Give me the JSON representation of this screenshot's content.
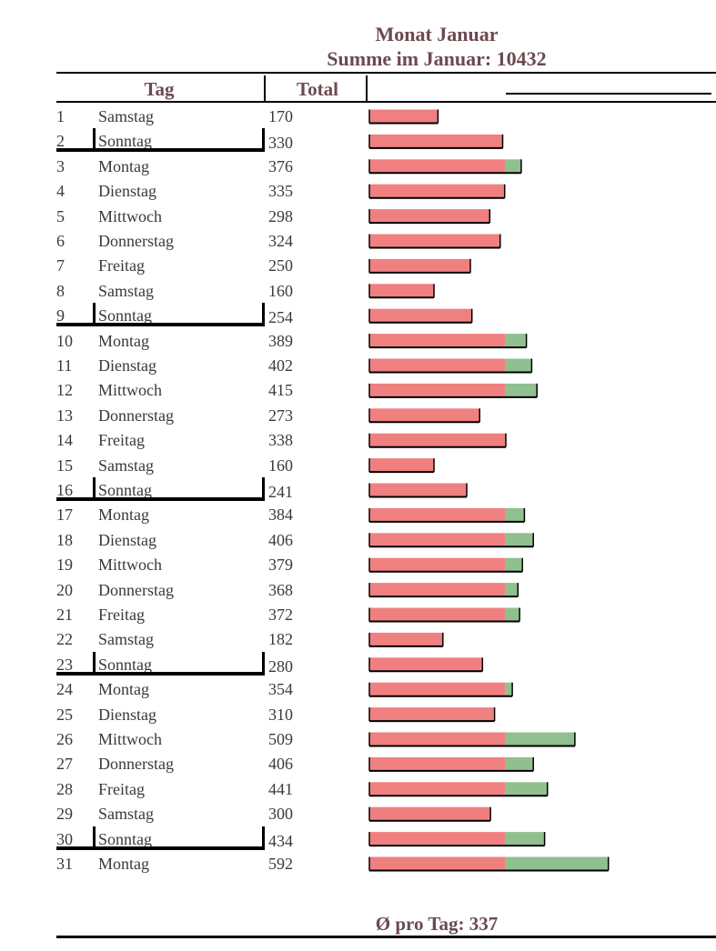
{
  "title": "Monat Januar",
  "subtitle": "Summe im Januar: 10432",
  "headers": {
    "day": "Tag",
    "total": "Total"
  },
  "average_label": "Ø pro Tag: 337",
  "colors": {
    "base": "#f08080",
    "excess": "#90c090",
    "outline": "#000000"
  },
  "chart_data": {
    "type": "bar",
    "orientation": "horizontal",
    "threshold": 337,
    "x_units_note": "",
    "categories": [
      "1",
      "2",
      "3",
      "4",
      "5",
      "6",
      "7",
      "8",
      "9",
      "10",
      "11",
      "12",
      "13",
      "14",
      "15",
      "16",
      "17",
      "18",
      "19",
      "20",
      "21",
      "22",
      "23",
      "24",
      "25",
      "26",
      "27",
      "28",
      "29",
      "30",
      "31"
    ],
    "weekdays": [
      "Samstag",
      "Sonntag",
      "Montag",
      "Dienstag",
      "Mittwoch",
      "Donnerstag",
      "Freitag",
      "Samstag",
      "Sonntag",
      "Montag",
      "Dienstag",
      "Mittwoch",
      "Donnerstag",
      "Freitag",
      "Samstag",
      "Sonntag",
      "Montag",
      "Dienstag",
      "Mittwoch",
      "Donnerstag",
      "Freitag",
      "Samstag",
      "Sonntag",
      "Montag",
      "Dienstag",
      "Mittwoch",
      "Donnerstag",
      "Freitag",
      "Samstag",
      "Sonntag",
      "Montag"
    ],
    "values": [
      170,
      330,
      376,
      335,
      298,
      324,
      250,
      160,
      254,
      389,
      402,
      415,
      273,
      338,
      160,
      241,
      384,
      406,
      379,
      368,
      372,
      182,
      280,
      354,
      310,
      509,
      406,
      441,
      300,
      434,
      592
    ],
    "total": 10432,
    "average": 337
  }
}
